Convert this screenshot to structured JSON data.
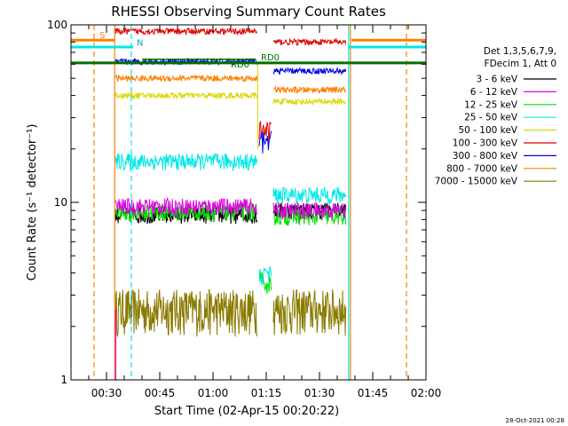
{
  "chart_data": {
    "type": "line",
    "title": "RHESSI Observing Summary Count Rates",
    "xlabel": "Start Time (02-Apr-15 00:20:22)",
    "ylabel": "Count Rate (s⁻¹ detector⁻¹)",
    "yscale": "log",
    "ylim": [
      1,
      100
    ],
    "yticks": [
      "1",
      "10",
      "100"
    ],
    "xlim_minutes": [
      0,
      100
    ],
    "xticks": [
      "00:30",
      "00:45",
      "01:00",
      "01:15",
      "01:30",
      "01:45",
      "02:00"
    ],
    "legend_header": [
      "Det 1,3,5,6,7,9,",
      "FDecim 1, Att 0"
    ],
    "legend_position": "right",
    "flag_labels": [
      "S",
      "N",
      "RD0",
      "RD0"
    ],
    "footer_stamp": "28-Oct-2021 00:28",
    "series": [
      {
        "name": "3 - 6 keV",
        "color": "#000000"
      },
      {
        "name": "6 - 12 keV",
        "color": "#e000e0"
      },
      {
        "name": "12 - 25 keV",
        "color": "#00e000"
      },
      {
        "name": "25 - 50 keV",
        "color": "#00e8e8"
      },
      {
        "name": "50 - 100 keV",
        "color": "#d8d800"
      },
      {
        "name": "100 - 300 keV",
        "color": "#e00000"
      },
      {
        "name": "300 - 800 keV",
        "color": "#0000e0"
      },
      {
        "name": "800 - 7000 keV",
        "color": "#ff8000"
      },
      {
        "name": "7000 - 15000 keV",
        "color": "#8a7a00"
      }
    ],
    "levels": {
      "3 - 6 keV": {
        "segment1": 8.5,
        "segment2": 9.0
      },
      "6 - 12 keV": {
        "segment1": 9.5,
        "segment2": 9.0
      },
      "12 - 25 keV": {
        "segment1": 8.8,
        "segment2": 8.3
      },
      "25 - 50 keV": {
        "segment1": 17,
        "segment2": 11
      },
      "50 - 100 keV": {
        "segment1": 40,
        "segment2": 37
      },
      "100 - 300 keV": {
        "segment1": 92,
        "segment2": 80
      },
      "300 - 800 keV": {
        "segment1": 62,
        "segment2": 55
      },
      "800 - 7000 keV": {
        "segment1": 50,
        "segment2": 43
      },
      "7000 - 15000 keV": {
        "segment1": 2.5,
        "segment2": 2.5
      }
    }
  }
}
